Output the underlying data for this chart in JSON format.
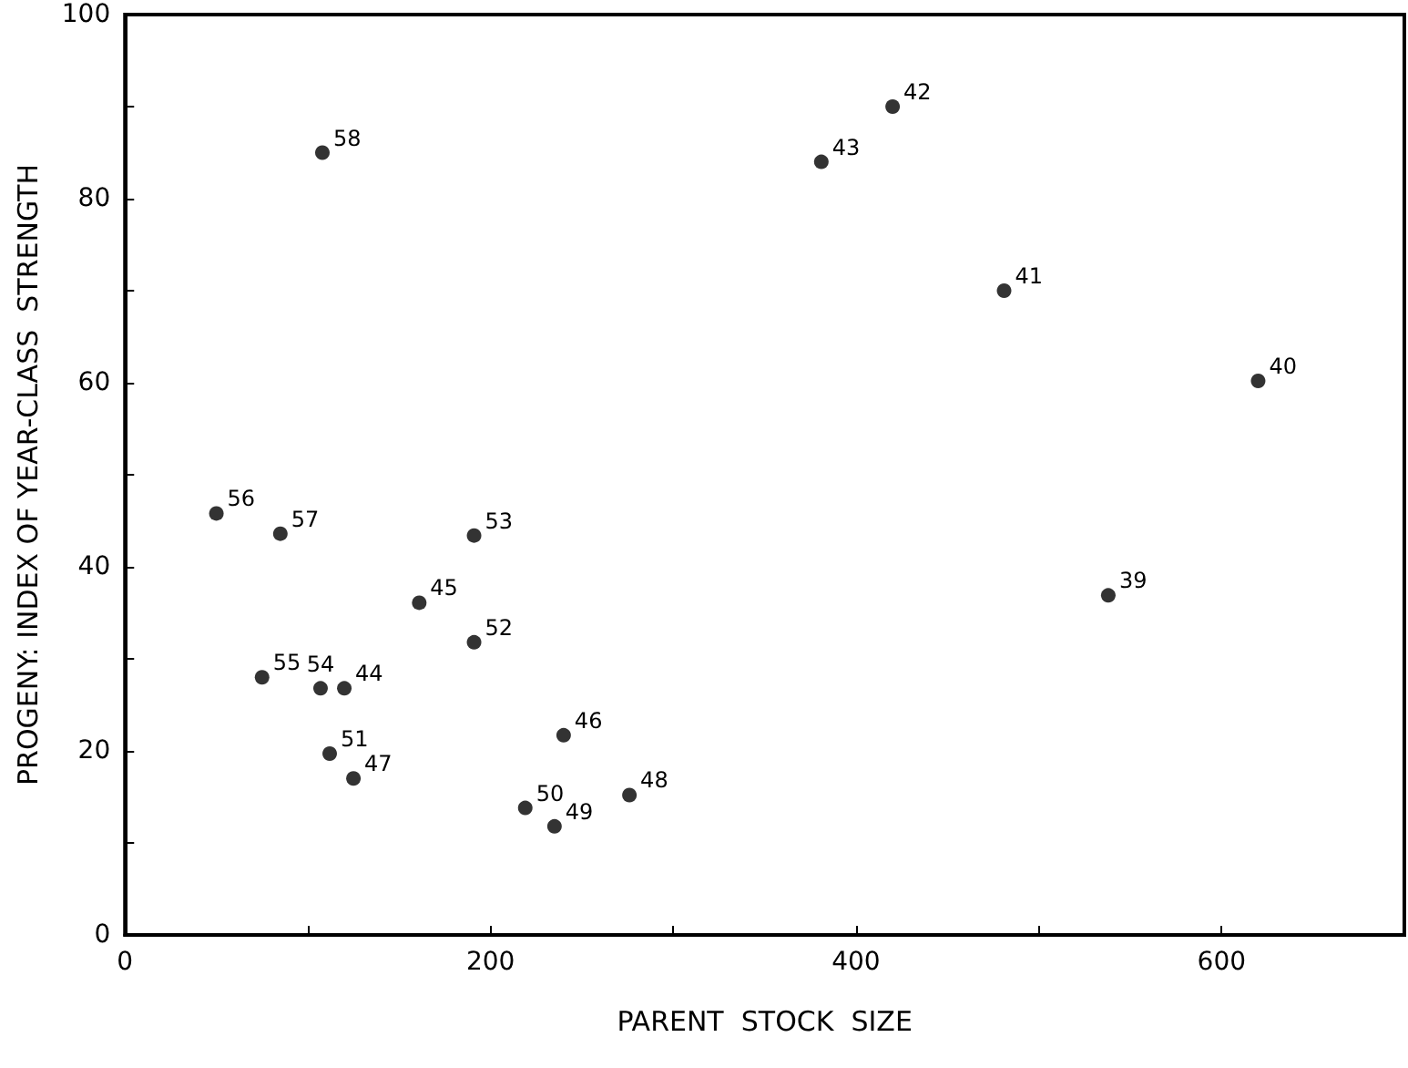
{
  "chart_data": {
    "type": "scatter",
    "xlabel": "PARENT  STOCK  SIZE",
    "ylabel": "PROGENY: INDEX OF YEAR-CLASS  STRENGTH",
    "x": [
      108,
      50,
      85,
      191,
      420,
      381,
      481,
      620,
      538,
      161,
      191,
      75,
      107,
      120,
      112,
      125,
      240,
      219,
      235,
      276
    ],
    "values": [
      85,
      45.8,
      43.6,
      43.4,
      90,
      84,
      70,
      60.2,
      36.9,
      36.1,
      31.8,
      28,
      26.8,
      26.8,
      19.7,
      17,
      21.7,
      13.8,
      11.8,
      15.2
    ],
    "color": "#000000",
    "marker": "circle",
    "grid": false,
    "xlim": [
      0,
      700
    ],
    "ylim": [
      0,
      100
    ],
    "xticks": [
      0,
      {
        "value": 100,
        "label": null
      },
      200,
      {
        "value": 300,
        "label": null
      },
      400,
      {
        "value": 500,
        "label": null
      },
      600
    ],
    "yticks": [
      0,
      {
        "value": 10,
        "label": null
      },
      20,
      {
        "value": 30,
        "label": null
      },
      40,
      {
        "value": 50,
        "label": null
      },
      60,
      {
        "value": 70,
        "label": null
      },
      80,
      {
        "value": 90,
        "label": null
      },
      100
    ],
    "annotations": [
      {
        "text": "58",
        "x": 108,
        "y": 85
      },
      {
        "text": "56",
        "x": 50,
        "y": 45.8
      },
      {
        "text": "57",
        "x": 85,
        "y": 43.6
      },
      {
        "text": "53",
        "x": 191,
        "y": 43.4
      },
      {
        "text": "42",
        "x": 420,
        "y": 90
      },
      {
        "text": "43",
        "x": 381,
        "y": 84
      },
      {
        "text": "41",
        "x": 481,
        "y": 70
      },
      {
        "text": "40",
        "x": 620,
        "y": 60.2
      },
      {
        "text": "39",
        "x": 538,
        "y": 36.9
      },
      {
        "text": "45",
        "x": 161,
        "y": 36.1
      },
      {
        "text": "52",
        "x": 191,
        "y": 31.8
      },
      {
        "text": "55",
        "x": 75,
        "y": 28
      },
      {
        "text": "54",
        "x": 107,
        "y": 26.8
      },
      {
        "text": "44",
        "x": 120,
        "y": 26.8
      },
      {
        "text": "51",
        "x": 112,
        "y": 19.7
      },
      {
        "text": "47",
        "x": 125,
        "y": 17
      },
      {
        "text": "46",
        "x": 240,
        "y": 21.7
      },
      {
        "text": "50",
        "x": 219,
        "y": 13.8
      },
      {
        "text": "49",
        "x": 235,
        "y": 11.8
      },
      {
        "text": "48",
        "x": 276,
        "y": 15.2
      }
    ]
  }
}
